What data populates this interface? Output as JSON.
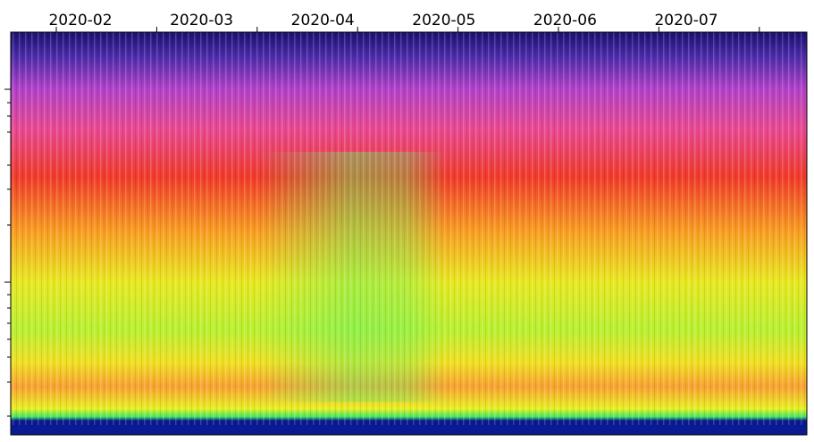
{
  "chart_data": {
    "type": "spectrogram",
    "categories": [
      "2020-02",
      "2020-03",
      "2020-04",
      "2020-05",
      "2020-06",
      "2020-07"
    ],
    "log_scale_y": true
  }
}
